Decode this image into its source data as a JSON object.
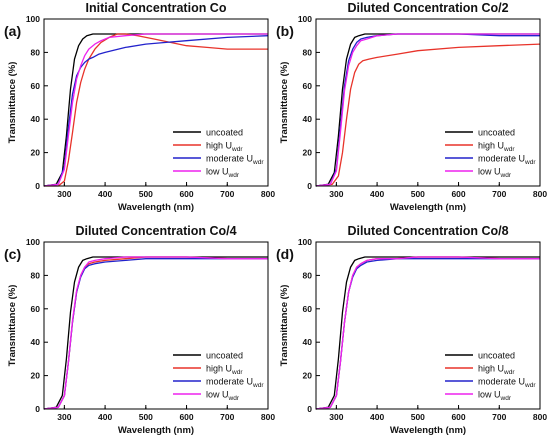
{
  "legend": {
    "entries": [
      {
        "label": "uncoated",
        "sub": ""
      },
      {
        "label": "high U",
        "sub": "wdr"
      },
      {
        "label": "moderate U",
        "sub": "wdr"
      },
      {
        "label": "low U",
        "sub": "wdr"
      }
    ]
  },
  "series_colors": {
    "uncoated": "#000000",
    "high U": "#e8332a",
    "moderate U": "#2222cc",
    "low U": "#ee22ee"
  },
  "chart_data": [
    {
      "type": "line",
      "panel_label": "(a)",
      "title": "Initial Concentration Co",
      "xlabel": "Wavelength (nm)",
      "ylabel": "Transmittance (%)",
      "xlim": [
        250,
        800
      ],
      "ylim": [
        0,
        100
      ],
      "xticks": [
        300,
        400,
        500,
        600,
        700,
        800
      ],
      "yticks": [
        0,
        20,
        40,
        60,
        80,
        100
      ],
      "legend_position": "bottom-right",
      "grid": false,
      "series": [
        {
          "name": "uncoated",
          "x": [
            250,
            280,
            295,
            305,
            315,
            325,
            335,
            345,
            355,
            370,
            380,
            400,
            500,
            600,
            700,
            800
          ],
          "y": [
            0,
            1,
            8,
            30,
            58,
            76,
            84,
            88,
            90,
            91,
            91,
            91,
            91,
            91,
            91,
            91
          ]
        },
        {
          "name": "high U",
          "x": [
            250,
            285,
            300,
            310,
            320,
            330,
            340,
            350,
            360,
            375,
            390,
            410,
            430,
            450,
            480,
            520,
            560,
            600,
            650,
            700,
            800
          ],
          "y": [
            0,
            0,
            3,
            15,
            32,
            50,
            62,
            70,
            76,
            82,
            86,
            89,
            91,
            91,
            90,
            88,
            86,
            84,
            83,
            82,
            82
          ]
        },
        {
          "name": "moderate U",
          "x": [
            250,
            285,
            300,
            310,
            320,
            330,
            340,
            350,
            360,
            370,
            385,
            400,
            450,
            500,
            550,
            600,
            700,
            800
          ],
          "y": [
            0,
            1,
            12,
            35,
            55,
            66,
            71,
            74,
            76,
            77,
            79,
            80,
            83,
            85,
            86,
            87,
            89,
            90
          ]
        },
        {
          "name": "low U",
          "x": [
            250,
            285,
            300,
            310,
            320,
            330,
            340,
            350,
            360,
            375,
            390,
            410,
            450,
            500,
            600,
            700,
            800
          ],
          "y": [
            0,
            1,
            10,
            30,
            50,
            64,
            72,
            78,
            82,
            85,
            87,
            89,
            90,
            91,
            91,
            91,
            91
          ]
        }
      ]
    },
    {
      "type": "line",
      "panel_label": "(b)",
      "title": "Diluted Concentration Co/2",
      "xlabel": "Wavelength (nm)",
      "ylabel": "Transmittance (%)",
      "xlim": [
        250,
        800
      ],
      "ylim": [
        0,
        100
      ],
      "xticks": [
        300,
        400,
        500,
        600,
        700,
        800
      ],
      "yticks": [
        0,
        20,
        40,
        60,
        80,
        100
      ],
      "legend_position": "bottom-right",
      "grid": false,
      "series": [
        {
          "name": "uncoated",
          "x": [
            250,
            280,
            295,
            305,
            315,
            325,
            335,
            345,
            355,
            370,
            400,
            500,
            600,
            700,
            800
          ],
          "y": [
            0,
            1,
            8,
            30,
            58,
            76,
            85,
            89,
            90,
            91,
            91,
            91,
            91,
            91,
            91
          ]
        },
        {
          "name": "high U",
          "x": [
            250,
            290,
            305,
            315,
            325,
            335,
            345,
            355,
            365,
            380,
            400,
            450,
            500,
            600,
            700,
            800
          ],
          "y": [
            0,
            1,
            6,
            20,
            40,
            58,
            68,
            73,
            75,
            76,
            77,
            79,
            81,
            83,
            84,
            85
          ]
        },
        {
          "name": "moderate U",
          "x": [
            250,
            285,
            300,
            310,
            320,
            330,
            340,
            350,
            360,
            375,
            400,
            450,
            500,
            600,
            700,
            800
          ],
          "y": [
            0,
            1,
            10,
            35,
            60,
            75,
            82,
            86,
            88,
            89,
            90,
            91,
            91,
            91,
            90,
            90
          ]
        },
        {
          "name": "low U",
          "x": [
            250,
            285,
            300,
            310,
            320,
            330,
            340,
            350,
            360,
            375,
            400,
            450,
            500,
            600,
            700,
            800
          ],
          "y": [
            0,
            1,
            9,
            32,
            57,
            72,
            80,
            84,
            87,
            88,
            90,
            91,
            91,
            91,
            91,
            91
          ]
        }
      ]
    },
    {
      "type": "line",
      "panel_label": "(c)",
      "title": "Diluted Concentration Co/4",
      "xlabel": "Wavelength (nm)",
      "ylabel": "Transmittance (%)",
      "xlim": [
        250,
        800
      ],
      "ylim": [
        0,
        100
      ],
      "xticks": [
        300,
        400,
        500,
        600,
        700,
        800
      ],
      "yticks": [
        0,
        20,
        40,
        60,
        80,
        100
      ],
      "legend_position": "bottom-right",
      "grid": false,
      "series": [
        {
          "name": "uncoated",
          "x": [
            250,
            280,
            295,
            305,
            315,
            325,
            335,
            345,
            355,
            370,
            400,
            500,
            600,
            700,
            800
          ],
          "y": [
            0,
            1,
            8,
            30,
            58,
            76,
            85,
            89,
            90,
            91,
            91,
            91,
            91,
            91,
            91
          ]
        },
        {
          "name": "high U",
          "x": [
            250,
            285,
            300,
            310,
            320,
            330,
            340,
            350,
            360,
            375,
            400,
            450,
            500,
            600,
            700,
            800
          ],
          "y": [
            0,
            1,
            8,
            28,
            52,
            70,
            80,
            85,
            87,
            88,
            89,
            90,
            91,
            91,
            90,
            90
          ]
        },
        {
          "name": "moderate U",
          "x": [
            250,
            285,
            300,
            310,
            320,
            330,
            340,
            350,
            360,
            375,
            400,
            450,
            500,
            600,
            700,
            800
          ],
          "y": [
            0,
            1,
            8,
            28,
            52,
            70,
            79,
            84,
            86,
            87,
            88,
            89,
            90,
            90,
            90,
            90
          ]
        },
        {
          "name": "low U",
          "x": [
            250,
            285,
            300,
            310,
            320,
            330,
            340,
            350,
            360,
            375,
            400,
            450,
            500,
            600,
            700,
            800
          ],
          "y": [
            0,
            1,
            8,
            28,
            53,
            71,
            80,
            85,
            88,
            89,
            90,
            91,
            91,
            91,
            90,
            90
          ]
        }
      ]
    },
    {
      "type": "line",
      "panel_label": "(d)",
      "title": "Diluted Concentration Co/8",
      "xlabel": "Wavelength (nm)",
      "ylabel": "Transmittance (%)",
      "xlim": [
        250,
        800
      ],
      "ylim": [
        0,
        100
      ],
      "xticks": [
        300,
        400,
        500,
        600,
        700,
        800
      ],
      "yticks": [
        0,
        20,
        40,
        60,
        80,
        100
      ],
      "legend_position": "bottom-right",
      "grid": false,
      "series": [
        {
          "name": "uncoated",
          "x": [
            250,
            280,
            295,
            305,
            315,
            325,
            335,
            345,
            355,
            370,
            400,
            500,
            600,
            700,
            800
          ],
          "y": [
            0,
            1,
            8,
            30,
            58,
            76,
            85,
            89,
            90,
            91,
            91,
            91,
            91,
            91,
            91
          ]
        },
        {
          "name": "high U",
          "x": [
            250,
            285,
            300,
            310,
            320,
            330,
            340,
            350,
            360,
            375,
            400,
            450,
            500,
            600,
            700,
            800
          ],
          "y": [
            0,
            1,
            8,
            28,
            52,
            70,
            80,
            85,
            87,
            89,
            90,
            90,
            91,
            91,
            90,
            90
          ]
        },
        {
          "name": "moderate U",
          "x": [
            250,
            285,
            300,
            310,
            320,
            330,
            340,
            350,
            360,
            375,
            400,
            450,
            500,
            600,
            700,
            800
          ],
          "y": [
            0,
            1,
            8,
            28,
            52,
            70,
            79,
            84,
            86,
            88,
            89,
            90,
            90,
            90,
            90,
            90
          ]
        },
        {
          "name": "low U",
          "x": [
            250,
            285,
            300,
            310,
            320,
            330,
            340,
            350,
            360,
            375,
            400,
            450,
            500,
            600,
            700,
            800
          ],
          "y": [
            0,
            1,
            8,
            28,
            52,
            70,
            80,
            85,
            87,
            89,
            90,
            90,
            91,
            91,
            90,
            90
          ]
        }
      ]
    }
  ]
}
